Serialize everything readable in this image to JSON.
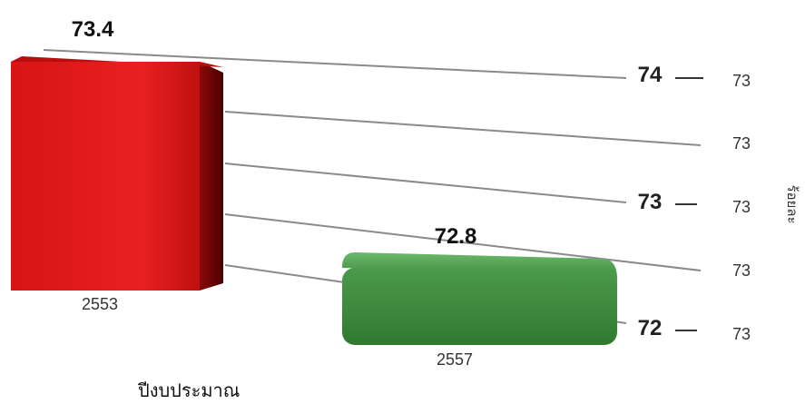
{
  "chart_data": {
    "type": "bar",
    "style": "3d",
    "categories": [
      "2553",
      "2557"
    ],
    "values": [
      73.4,
      72.8
    ],
    "data_labels": [
      "73.4",
      "72.8"
    ],
    "xlabel": "ปีงบประมาณ",
    "ylabel": "ร้อยละ",
    "ylim": [
      72,
      74
    ],
    "inner_ticks": [
      "74",
      "73",
      "72"
    ],
    "outer_ticks": [
      "73",
      "73",
      "73",
      "73",
      "73"
    ],
    "grid": true,
    "legend": "none",
    "colors": {
      "bar_1": "#e01818",
      "bar_1_side": "#7a0606",
      "bar_2": "#3f8a3f",
      "bar_2_top": "#5fae5f",
      "bar_2_side": "#2a632a",
      "grid": "#8a8a8a"
    }
  }
}
